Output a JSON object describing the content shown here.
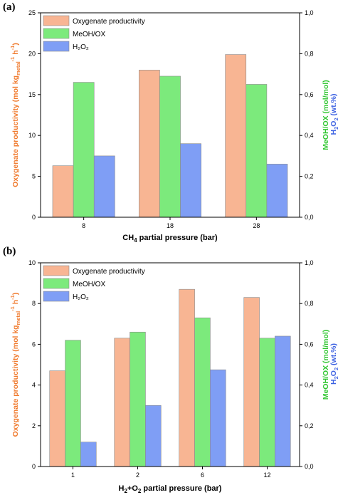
{
  "colors": {
    "oxygenate": "#f8b593",
    "meoh": "#7cea7c",
    "h2o2": "#7f9ef5",
    "oxygenate_axis": "#f07a2d",
    "meoh_axis": "#2ec62e",
    "h2o2_axis": "#3d62e2",
    "bar_stroke": "#8a8a8a"
  },
  "chart_data": [
    {
      "panel_label": "(a)",
      "type": "bar",
      "categories": [
        "8",
        "18",
        "28"
      ],
      "xlabel": {
        "base": "CH",
        "sub": "4",
        "rest": " partial pressure (bar)"
      },
      "ylabel_left": {
        "a": "Oxygenate productivity (mol kg",
        "sub": "metal",
        "sup": "-1",
        "b": " h",
        "sup2": "-1",
        "c": ")"
      },
      "ylabel_right_1": "MeOH/OX (mol/mol)",
      "ylabel_right_2": {
        "a": "H",
        "sub": "2",
        "b": "O",
        "sub2": "2",
        "c": " (wt.%)"
      },
      "ylim_left": [
        0,
        25
      ],
      "yticks_left": [
        "0",
        "5",
        "10",
        "15",
        "20",
        "25"
      ],
      "ylim_right": [
        0,
        1.0
      ],
      "yticks_right": [
        "0,0",
        "0,2",
        "0,4",
        "0,6",
        "0,8",
        "1,0"
      ],
      "legend_position": "top-left",
      "legend": [
        {
          "key": "oxygenate",
          "label": "Oxygenate productivity"
        },
        {
          "key": "meoh",
          "label": "MeOH/OX"
        },
        {
          "key": "h2o2",
          "label": "H₂O₂"
        }
      ],
      "series": [
        {
          "name": "Oxygenate productivity",
          "key": "oxygenate",
          "axis": "left",
          "values": [
            6.3,
            18.0,
            19.9
          ]
        },
        {
          "name": "MeOH/OX",
          "key": "meoh",
          "axis": "right",
          "values": [
            0.66,
            0.69,
            0.65
          ]
        },
        {
          "name": "H₂O₂",
          "key": "h2o2",
          "axis": "right",
          "values": [
            0.3,
            0.36,
            0.26
          ]
        }
      ]
    },
    {
      "panel_label": "(b)",
      "type": "bar",
      "categories": [
        "1",
        "2",
        "6",
        "12"
      ],
      "xlabel": {
        "base": "H",
        "sub": "2",
        "rest": "+O",
        "sub2": "2",
        "rest2": " partial pressure (bar)"
      },
      "ylabel_left": {
        "a": "Oxygenate productivity (mol kg",
        "sub": "metal",
        "sup": "-1",
        "b": " h",
        "sup2": "-1",
        "c": ")"
      },
      "ylabel_right_1": "MeOH/OX (mol/mol)",
      "ylabel_right_2": {
        "a": "H",
        "sub": "2",
        "b": "O",
        "sub2": "2",
        "c": " (wt.%)"
      },
      "ylim_left": [
        0,
        10
      ],
      "yticks_left": [
        "0",
        "2",
        "4",
        "6",
        "8",
        "10"
      ],
      "ylim_right": [
        0,
        1.0
      ],
      "yticks_right": [
        "0,0",
        "0,2",
        "0,4",
        "0,6",
        "0,8",
        "1,0"
      ],
      "legend_position": "top-left",
      "legend": [
        {
          "key": "oxygenate",
          "label": "Oxygenate productivity"
        },
        {
          "key": "meoh",
          "label": "MeOH/OX"
        },
        {
          "key": "h2o2",
          "label": "H₂O₂"
        }
      ],
      "series": [
        {
          "name": "Oxygenate productivity",
          "key": "oxygenate",
          "axis": "left",
          "values": [
            4.7,
            6.3,
            8.7,
            8.3
          ]
        },
        {
          "name": "MeOH/OX",
          "key": "meoh",
          "axis": "right",
          "values": [
            0.62,
            0.66,
            0.73,
            0.63
          ]
        },
        {
          "name": "H₂O₂",
          "key": "h2o2",
          "axis": "right",
          "values": [
            0.12,
            0.3,
            0.475,
            0.64
          ]
        }
      ]
    }
  ]
}
